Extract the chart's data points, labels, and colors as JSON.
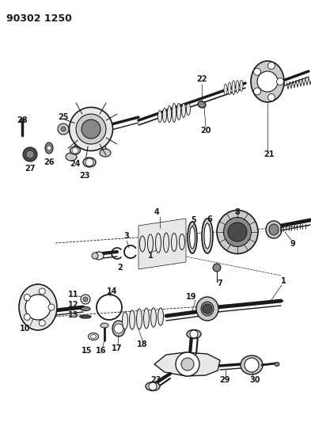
{
  "title": "90302 1250",
  "bg_color": "#ffffff",
  "lc": "#1a1a1a",
  "gray_dark": "#4a4a4a",
  "gray_med": "#888888",
  "gray_light": "#cccccc",
  "gray_pale": "#e8e8e8"
}
